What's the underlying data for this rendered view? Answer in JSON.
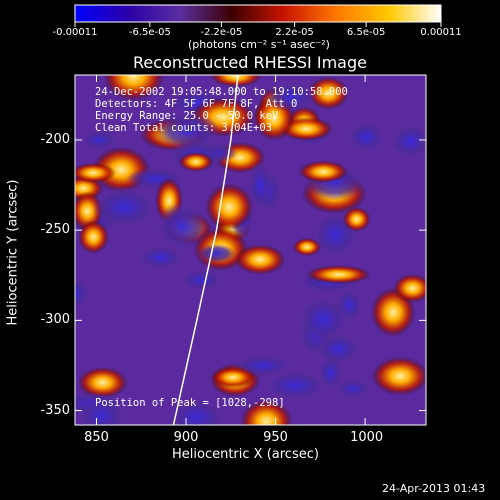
{
  "colors": {
    "background": "#000000",
    "text": "#ffffff",
    "limb_line": "#ffffff",
    "colormap": [
      "#0000ff",
      "#2a00a8",
      "#5a2ea0",
      "#3c0000",
      "#c81400",
      "#ff7800",
      "#ffc800",
      "#ffffff"
    ]
  },
  "colorbar": {
    "ticks": [
      "-0.00011",
      "-6.5e-05",
      "-2.2e-05",
      "2.2e-05",
      "6.5e-05",
      "0.00011"
    ],
    "tick_values": [
      -0.00011,
      -6.5e-05,
      -2.2e-05,
      2.2e-05,
      6.5e-05,
      0.00011
    ],
    "range": [
      -0.00011,
      0.00011
    ],
    "units": "(photons cm⁻² s⁻¹ asec⁻²)"
  },
  "chart_data": {
    "type": "heatmap",
    "title": "Reconstructed RHESSI Image",
    "xlabel": "Heliocentric X (arcsec)",
    "ylabel": "Heliocentric Y (arcsec)",
    "xlim": [
      838,
      1034
    ],
    "ylim": [
      -358,
      -164
    ],
    "xticks": [
      "850",
      "900",
      "950",
      "1000"
    ],
    "xtick_values": [
      850,
      900,
      950,
      1000
    ],
    "yticks": [
      "-200",
      "-250",
      "-300",
      "-350"
    ],
    "ytick_values": [
      -200,
      -250,
      -300,
      -350
    ],
    "grid": false,
    "limb_curve": [
      [
        929,
        -164
      ],
      [
        925,
        -200
      ],
      [
        917,
        -250
      ],
      [
        906,
        -300
      ],
      [
        897,
        -340
      ],
      [
        893,
        -358
      ]
    ],
    "annotations": [
      "24-Dec-2002 19:05:48.000 to 19:10:58.000",
      "Detectors: 4F 5F 6F 7F 8F, Att 0",
      "Energy Range: 25.0 - 50.0 keV",
      "Clean     Total counts: 3.04E+03"
    ],
    "peak_label": "Position of Peak = [1028,-298]"
  },
  "footer": {
    "timestamp": "24-Apr-2013 01:43"
  }
}
